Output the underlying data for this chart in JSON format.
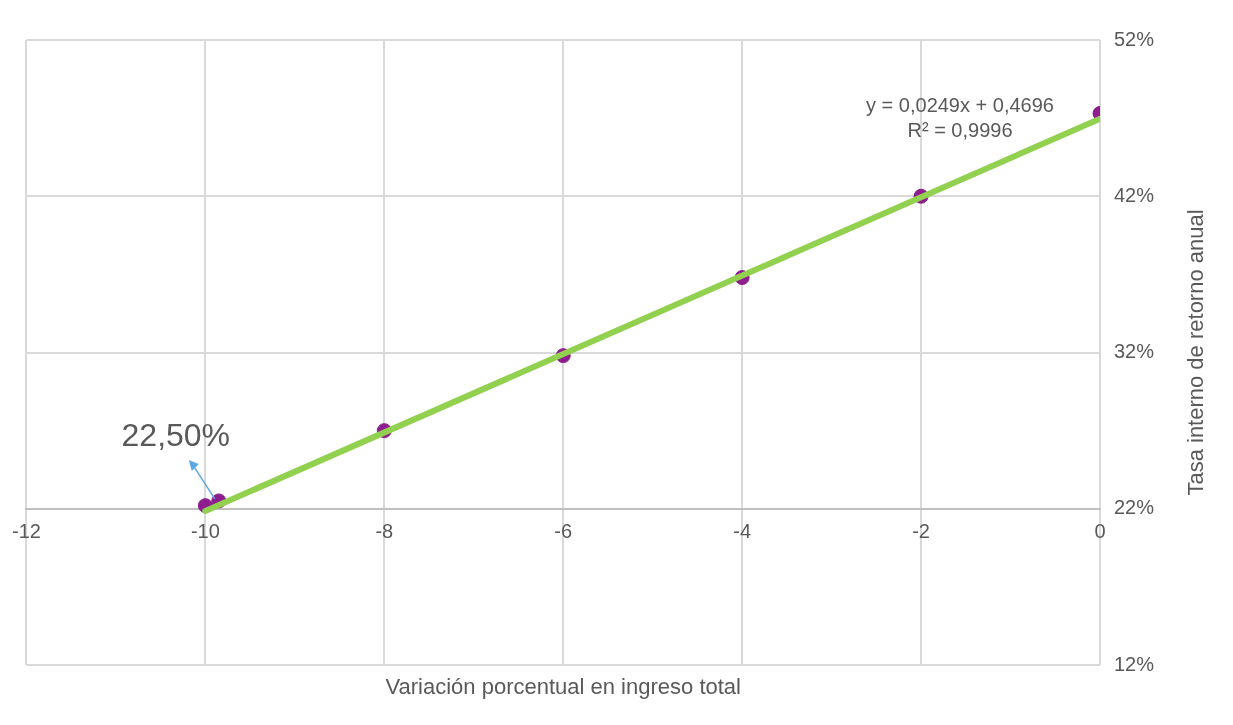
{
  "chart_data": {
    "type": "scatter",
    "xlabel": "Variación porcentual en ingreso total",
    "ylabel": "Tasa interno de retorno anual",
    "x": [
      0,
      -2,
      -4,
      -6,
      -8,
      -9.85,
      -10
    ],
    "series": [
      {
        "color": "#8e1e8e",
        "values": [
          47.3,
          42.0,
          36.8,
          31.8,
          27.0,
          22.5,
          22.2
        ]
      },
      {
        "type": "line",
        "marker": "none",
        "color": "#92d050",
        "x": [
          -10,
          0
        ],
        "values": [
          21.86,
          46.96
        ]
      }
    ],
    "xlim": [
      -12,
      0
    ],
    "xticks": [
      -12,
      -10,
      -8,
      -6,
      -4,
      -2,
      0
    ],
    "ylim": [
      12,
      52
    ],
    "yticks": [
      {
        "value": 12,
        "label": "12%"
      },
      {
        "value": 22,
        "label": "22%"
      },
      {
        "value": 32,
        "label": "32%"
      },
      {
        "value": 42,
        "label": "42%"
      },
      {
        "value": 52,
        "label": "52%"
      }
    ],
    "annotations": [
      {
        "text": "22,50%",
        "x": -9.85,
        "y": 22.5
      },
      "y = 0,0249x + 0,4696",
      "R² = 0,9996"
    ],
    "grid": true,
    "legend": false,
    "marker": "circle"
  }
}
